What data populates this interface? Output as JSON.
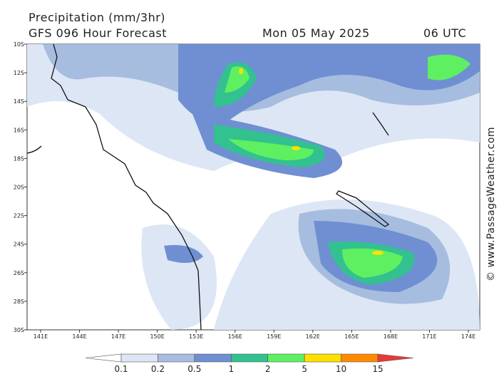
{
  "header": {
    "title": "Precipitation (mm/3hr)",
    "subtitle": "GFS 096 Hour Forecast",
    "date": "Mon 05 May 2025",
    "time": "06 UTC"
  },
  "map": {
    "lat_labels": [
      "10S",
      "12S",
      "14S",
      "16S",
      "18S",
      "20S",
      "22S",
      "24S",
      "26S",
      "28S",
      "30S"
    ],
    "lon_labels": [
      "141E",
      "144E",
      "147E",
      "150E",
      "153E",
      "156E",
      "159E",
      "162E",
      "165E",
      "168E",
      "171E",
      "174E"
    ]
  },
  "legend": {
    "labels": [
      "0.1",
      "0.2",
      "0.5",
      "1",
      "2",
      "5",
      "10",
      "15"
    ],
    "colors": [
      "#ffffff",
      "#dde6f4",
      "#a6bde0",
      "#6f8fd2",
      "#33c190",
      "#5ef060",
      "#ffe000",
      "#ff8a00",
      "#e83838"
    ]
  },
  "credit": "© www.PassageWeather.com"
}
